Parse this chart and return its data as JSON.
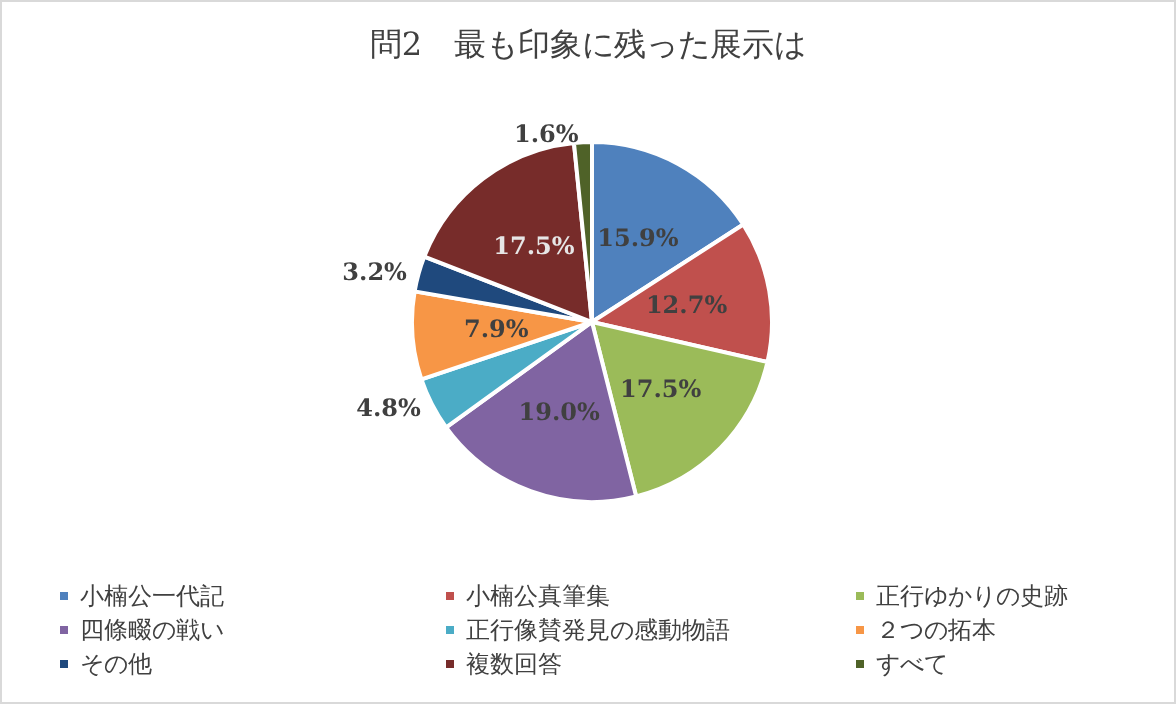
{
  "chart_data": {
    "type": "pie",
    "title": "問2　最も印象に残った展示は",
    "categories": [
      "小楠公一代記",
      "小楠公真筆集",
      "正行ゆかりの史跡",
      "四條畷の戦い",
      "正行像賛発見の感動物語",
      "２つの拓本",
      "その他",
      "複数回答",
      "すべて"
    ],
    "values": [
      15.9,
      12.7,
      17.5,
      19.0,
      4.8,
      7.9,
      3.2,
      17.5,
      1.6
    ],
    "value_labels": [
      "15.9%",
      "12.7%",
      "17.5%",
      "19.0%",
      "4.8%",
      "7.9%",
      "3.2%",
      "17.5%",
      "1.6%"
    ],
    "colors": [
      "#4f81bd",
      "#c0504d",
      "#9bbb59",
      "#8064a2",
      "#4bacc6",
      "#f79646",
      "#1f497d",
      "#772c2a",
      "#4f6228"
    ],
    "legend": "bottom"
  }
}
